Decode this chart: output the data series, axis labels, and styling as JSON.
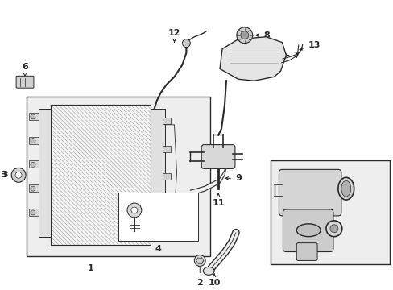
{
  "bg_color": "#ffffff",
  "line_color": "#2a2a2a",
  "light_gray": "#e8e8e8",
  "mid_gray": "#cccccc",
  "dark_gray": "#999999",
  "box_fill": "#eeeeee",
  "figsize": [
    4.89,
    3.6
  ],
  "dpi": 100,
  "xlim": [
    0,
    489
  ],
  "ylim": [
    0,
    360
  ]
}
